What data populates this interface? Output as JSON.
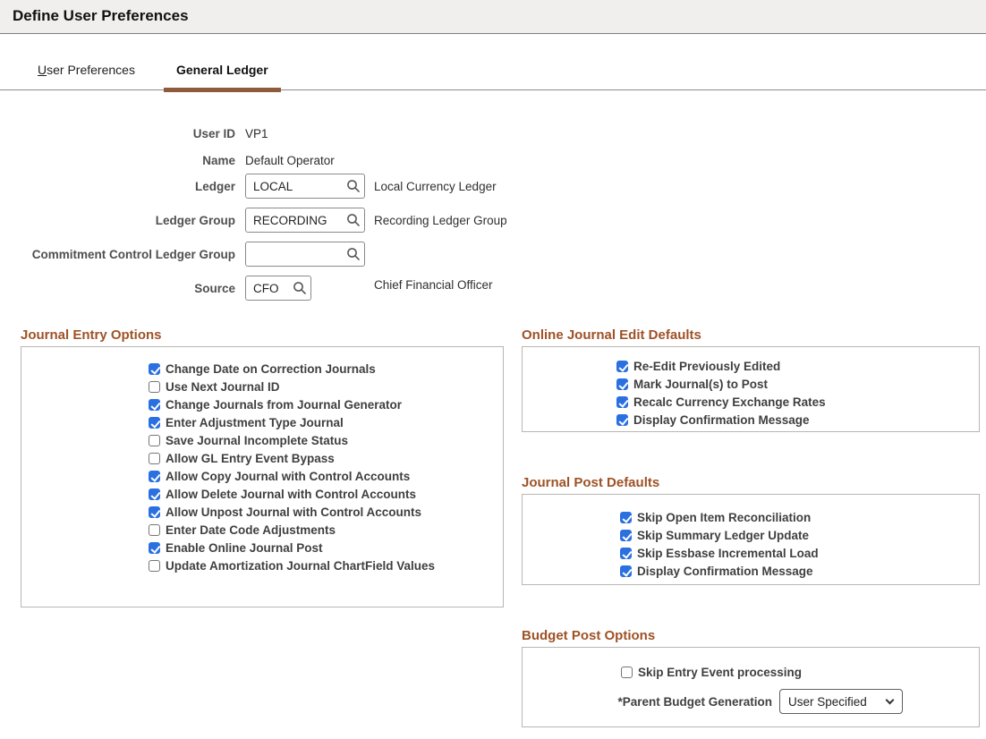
{
  "page": {
    "title": "Define User Preferences"
  },
  "tabs": {
    "user_preferences": {
      "label_first": "U",
      "label_rest": "ser Preferences"
    },
    "general_ledger": {
      "label": "General Ledger"
    }
  },
  "form": {
    "user_id": {
      "label": "User ID",
      "value": "VP1"
    },
    "name": {
      "label": "Name",
      "value": "Default Operator"
    },
    "ledger": {
      "label": "Ledger",
      "value": "LOCAL",
      "description": "Local Currency Ledger"
    },
    "ledger_group": {
      "label": "Ledger Group",
      "value": "RECORDING",
      "description": "Recording Ledger Group"
    },
    "commitment_control_ledger_group": {
      "label": "Commitment Control Ledger Group",
      "value": ""
    },
    "source": {
      "label": "Source",
      "value": "CFO",
      "description": "Chief Financial Officer"
    }
  },
  "sections": {
    "journal_entry_options": {
      "title": "Journal Entry Options",
      "checkboxes": [
        {
          "label": "Change Date on Correction Journals",
          "checked": true
        },
        {
          "label": "Use Next Journal ID",
          "checked": false
        },
        {
          "label": "Change Journals from Journal Generator",
          "checked": true
        },
        {
          "label": "Enter Adjustment Type Journal",
          "checked": true
        },
        {
          "label": "Save Journal Incomplete Status",
          "checked": false
        },
        {
          "label": "Allow GL Entry Event Bypass",
          "checked": false
        },
        {
          "label": "Allow Copy Journal with Control Accounts",
          "checked": true
        },
        {
          "label": "Allow Delete Journal with Control Accounts",
          "checked": true
        },
        {
          "label": "Allow Unpost Journal with Control Accounts",
          "checked": true
        },
        {
          "label": "Enter Date Code Adjustments",
          "checked": false
        },
        {
          "label": "Enable Online Journal Post",
          "checked": true
        },
        {
          "label": "Update Amortization Journal ChartField Values",
          "checked": false
        }
      ]
    },
    "online_journal_edit_defaults": {
      "title": "Online Journal Edit Defaults",
      "checkboxes": [
        {
          "label": "Re-Edit Previously Edited",
          "checked": true
        },
        {
          "label": "Mark Journal(s) to Post",
          "checked": true
        },
        {
          "label": "Recalc Currency Exchange Rates",
          "checked": true
        },
        {
          "label": "Display Confirmation Message",
          "checked": true
        }
      ]
    },
    "journal_post_defaults": {
      "title": "Journal Post Defaults",
      "checkboxes": [
        {
          "label": "Skip Open Item Reconciliation",
          "checked": true
        },
        {
          "label": "Skip Summary Ledger Update",
          "checked": true
        },
        {
          "label": "Skip Essbase Incremental Load",
          "checked": true
        },
        {
          "label": "Display Confirmation Message",
          "checked": true
        }
      ]
    },
    "budget_post_options": {
      "title": "Budget Post Options",
      "checkboxes": [
        {
          "label": "Skip Entry Event processing",
          "checked": false
        }
      ],
      "parent_budget_generation": {
        "label": "*Parent Budget Generation",
        "value": "User Specified"
      }
    }
  },
  "colors": {
    "header_bg": "#f1efed",
    "tab_underline": "#8e5b3c",
    "section_heading": "#9e5226",
    "checkbox_checked": "#2b70e0"
  }
}
